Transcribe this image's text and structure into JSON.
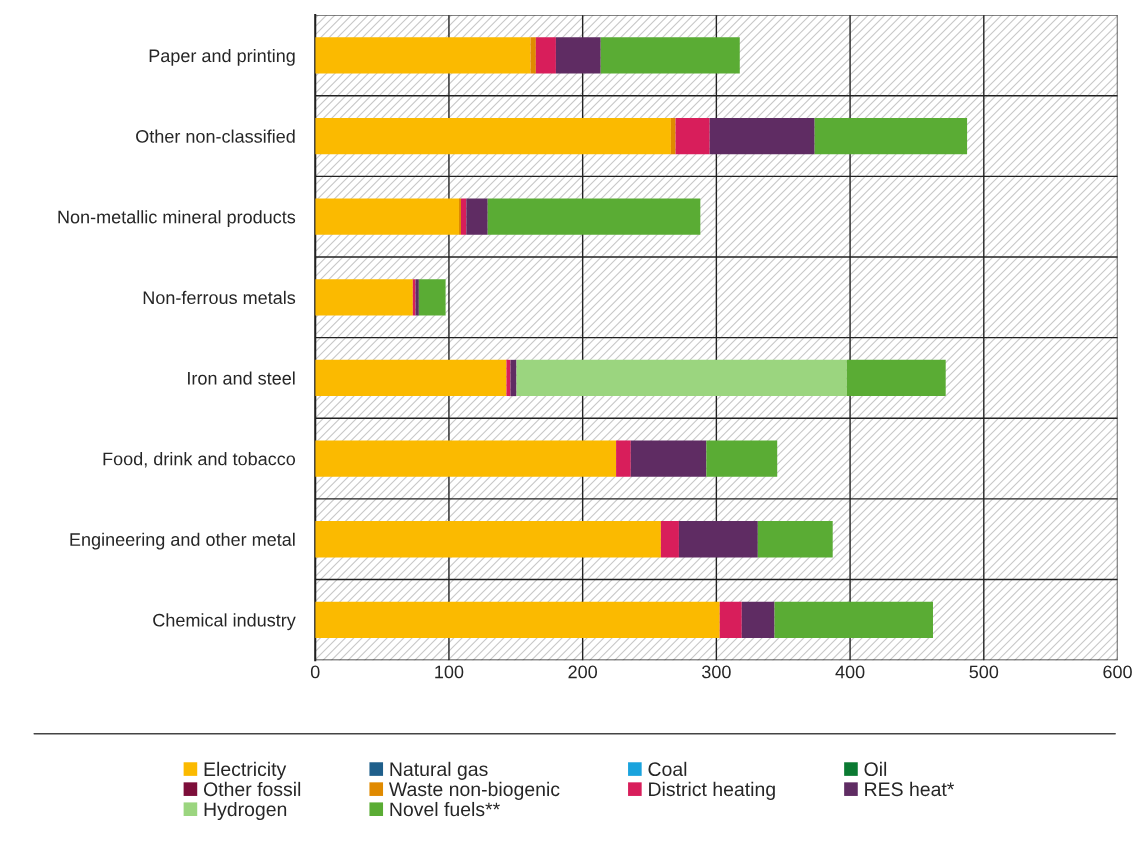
{
  "chart_data": {
    "type": "bar",
    "orientation": "horizontal",
    "stacked": true,
    "categories": [
      "Paper and printing",
      "Other non-classified",
      "Non-metallic mineral products",
      "Non-ferrous metals",
      "Iron and steel",
      "Food, drink and tobacco",
      "Engineering and other metal",
      "Chemical industry"
    ],
    "series": [
      {
        "name": "Electricity",
        "color": "#fbba00",
        "values": [
          161,
          266,
          107.5,
          73,
          143,
          225,
          258.5,
          302.5
        ]
      },
      {
        "name": "Natural gas",
        "color": "#1f5f8b",
        "values": [
          0,
          0,
          0,
          0,
          0,
          0,
          0,
          0
        ]
      },
      {
        "name": "Coal",
        "color": "#1aa3dd",
        "values": [
          0,
          0,
          0,
          0,
          0,
          0,
          0,
          0
        ]
      },
      {
        "name": "Oil",
        "color": "#0b7a32",
        "values": [
          0,
          0,
          0,
          0,
          0,
          0,
          0,
          0
        ]
      },
      {
        "name": "Other fossil",
        "color": "#7d0e3a",
        "values": [
          0,
          0,
          0,
          0,
          0,
          0,
          0,
          0
        ]
      },
      {
        "name": "Waste non-biogenic",
        "color": "#e08a00",
        "values": [
          4,
          3.5,
          1.5,
          0,
          0,
          0,
          0,
          0
        ]
      },
      {
        "name": "District heating",
        "color": "#d81e5b",
        "values": [
          15,
          25.5,
          4,
          2,
          3,
          11,
          13.5,
          16.5
        ]
      },
      {
        "name": "RES heat*",
        "color": "#5f2c63",
        "values": [
          33.5,
          78.5,
          16,
          2.5,
          4.5,
          56.5,
          59,
          24.5
        ]
      },
      {
        "name": "Hydrogen",
        "color": "#9bd57f",
        "values": [
          0,
          0,
          0,
          0,
          247,
          0,
          0,
          0
        ]
      },
      {
        "name": "Novel fuels**",
        "color": "#5aac34",
        "values": [
          104,
          114,
          159,
          20,
          74,
          53,
          56,
          118.5
        ]
      }
    ],
    "xlim": [
      0,
      600
    ],
    "xticks": [
      0,
      100,
      200,
      300,
      400,
      500,
      600
    ],
    "grid": true,
    "legend": "bottom"
  }
}
